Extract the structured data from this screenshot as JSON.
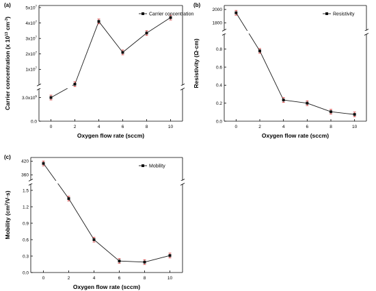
{
  "chart_data": [
    {
      "panel_label": "(a)",
      "type": "line",
      "xlabel": "Oxygen flow rate (sccm)",
      "ylabel": "Carrier concentration (x 10",
      "ylabel_exponent": "13",
      "ylabel_unit": " cm",
      "ylabel_unit_exponent": "-3",
      "ylabel_close": ")",
      "x": [
        0,
        2,
        4,
        6,
        8,
        10
      ],
      "series": [
        {
          "name": "Carrier concentration",
          "values": [
            300000.0,
            410000.0,
            41000000.0,
            21000000.0,
            33500000.0,
            43500000.0
          ]
        }
      ],
      "y_break": {
        "lower_range": [
          0,
          400000.0
        ],
        "upper_range": [
          400000.0,
          50000000.0
        ]
      },
      "yticks": [
        {
          "value": 0,
          "label": "0.0"
        },
        {
          "value": 300000.0,
          "label": "3.0x10",
          "exp": "5"
        },
        {
          "value": 10000000.0,
          "label": "1x10",
          "exp": "7"
        },
        {
          "value": 20000000.0,
          "label": "2x10",
          "exp": "7"
        },
        {
          "value": 30000000.0,
          "label": "3x10",
          "exp": "7"
        },
        {
          "value": 40000000.0,
          "label": "4x10",
          "exp": "7"
        },
        {
          "value": 50000000.0,
          "label": "5x10",
          "exp": "7"
        }
      ],
      "xticks": [
        "0",
        "2",
        "4",
        "6",
        "8",
        "10"
      ],
      "legend_position": "top-right",
      "grid": false
    },
    {
      "panel_label": "(b)",
      "type": "line",
      "xlabel": "Oxygen flow rate (sccm)",
      "ylabel": "Resistivity (Ω·cm)",
      "x": [
        0,
        2,
        4,
        6,
        8,
        10
      ],
      "series": [
        {
          "name": "Resistivity",
          "values": [
            1950,
            0.78,
            0.235,
            0.2,
            0.105,
            0.075
          ]
        }
      ],
      "y_break": {
        "lower_range": [
          0,
          0.95
        ],
        "upper_range": [
          1700,
          2050
        ]
      },
      "yticks": [
        {
          "value": 0.0,
          "label": "0.0"
        },
        {
          "value": 0.2,
          "label": "0.2"
        },
        {
          "value": 0.4,
          "label": "0.4"
        },
        {
          "value": 0.6,
          "label": "0.6"
        },
        {
          "value": 0.8,
          "label": "0.8"
        },
        {
          "value": 1800,
          "label": "1800"
        },
        {
          "value": 2000,
          "label": "2000"
        }
      ],
      "xticks": [
        "0",
        "2",
        "4",
        "6",
        "8",
        "10"
      ],
      "legend_position": "top-right",
      "grid": false
    },
    {
      "panel_label": "(c)",
      "type": "line",
      "xlabel": "Oxygen flow rate (sccm)",
      "ylabel": "Mobility (cm",
      "ylabel_exponent": "2",
      "ylabel_unit": "/V·s)",
      "x": [
        0,
        2,
        4,
        6,
        8,
        10
      ],
      "series": [
        {
          "name": "Mobility",
          "values": [
            410,
            1.35,
            0.6,
            0.21,
            0.19,
            0.31
          ]
        }
      ],
      "y_break": {
        "lower_range": [
          0,
          1.6
        ],
        "upper_range": [
          340,
          430
        ]
      },
      "yticks": [
        {
          "value": 0.0,
          "label": "0.0"
        },
        {
          "value": 0.3,
          "label": "0.3"
        },
        {
          "value": 0.6,
          "label": "0.6"
        },
        {
          "value": 0.9,
          "label": "0.9"
        },
        {
          "value": 1.2,
          "label": "1.2"
        },
        {
          "value": 1.5,
          "label": "1.5"
        },
        {
          "value": 360,
          "label": "360"
        },
        {
          "value": 420,
          "label": "420"
        }
      ],
      "xticks": [
        "0",
        "2",
        "4",
        "6",
        "8",
        "10"
      ],
      "legend_position": "top-right",
      "grid": false
    }
  ]
}
